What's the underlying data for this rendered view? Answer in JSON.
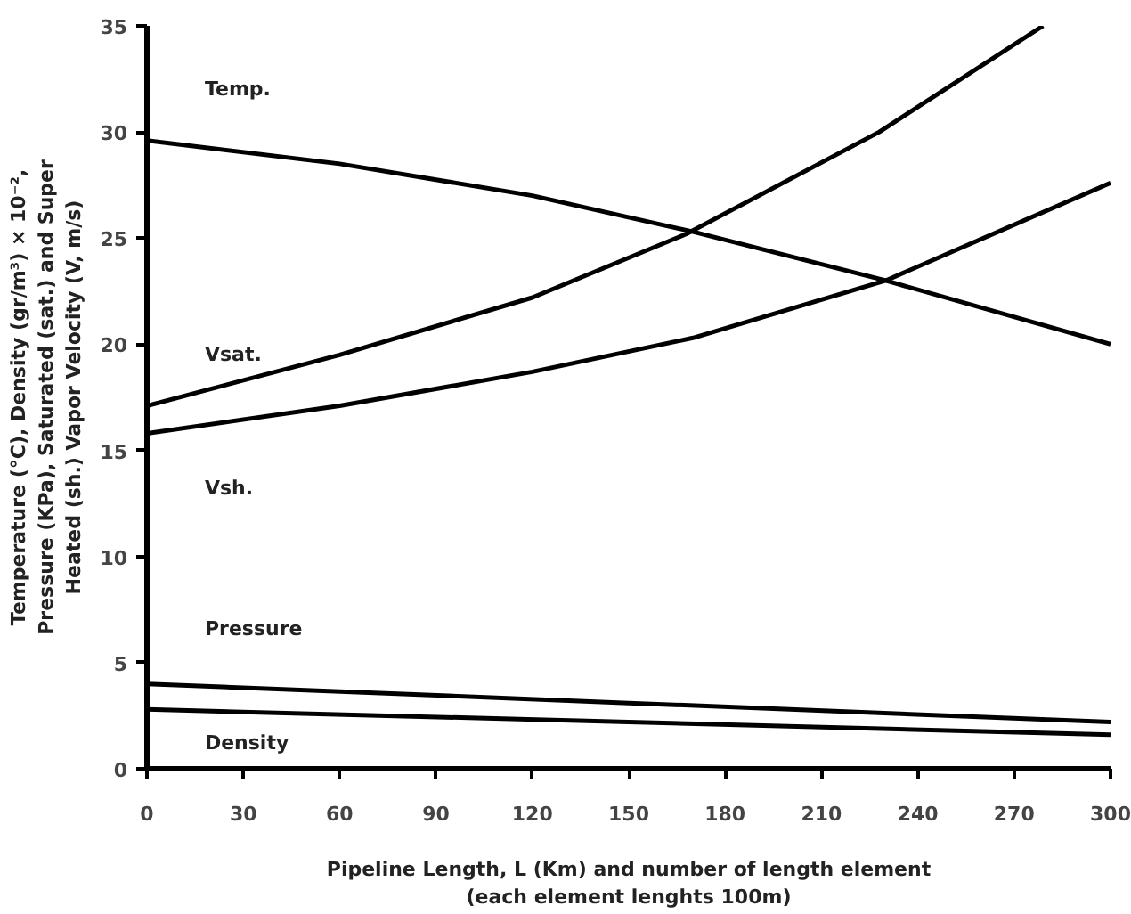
{
  "chart_data": {
    "type": "line",
    "xlabel": "Pipeline Length, L (Km) and number of length element (each element lenghts 100m)",
    "ylabel": "Temperature (°C), Density (gr/m³) × 10⁻², Pressure (KPa), Saturated (sat.) and Super Heated (sh.) Vapor Velocity (V, m/s)",
    "xlim": [
      0,
      300
    ],
    "ylim": [
      0,
      35
    ],
    "xticks": [
      0,
      30,
      60,
      90,
      120,
      150,
      180,
      210,
      240,
      270,
      300
    ],
    "yticks": [
      0,
      5,
      10,
      15,
      20,
      25,
      30,
      35
    ],
    "grid": false,
    "legend": false,
    "marker": "none",
    "line_style": "solid",
    "series": [
      {
        "name": "Temp.",
        "color": "#000000",
        "x": [
          0,
          60,
          120,
          170,
          230,
          300
        ],
        "values": [
          29.6,
          28.5,
          27.0,
          25.3,
          23.0,
          20.0
        ]
      },
      {
        "name": "Vsat.",
        "color": "#000000",
        "x": [
          0,
          60,
          120,
          168,
          228,
          279
        ],
        "values": [
          17.1,
          19.5,
          22.2,
          25.2,
          30.0,
          35.0
        ]
      },
      {
        "name": "Vsh.",
        "color": "#000000",
        "x": [
          0,
          60,
          120,
          170,
          230,
          300
        ],
        "values": [
          15.8,
          17.1,
          18.7,
          20.3,
          23.0,
          27.6
        ]
      },
      {
        "name": "Pressure",
        "color": "#000000",
        "x": [
          0,
          150,
          300
        ],
        "values": [
          4.0,
          3.1,
          2.2
        ]
      },
      {
        "name": "Density",
        "color": "#000000",
        "x": [
          0,
          150,
          300
        ],
        "values": [
          2.8,
          2.2,
          1.6
        ]
      }
    ]
  }
}
